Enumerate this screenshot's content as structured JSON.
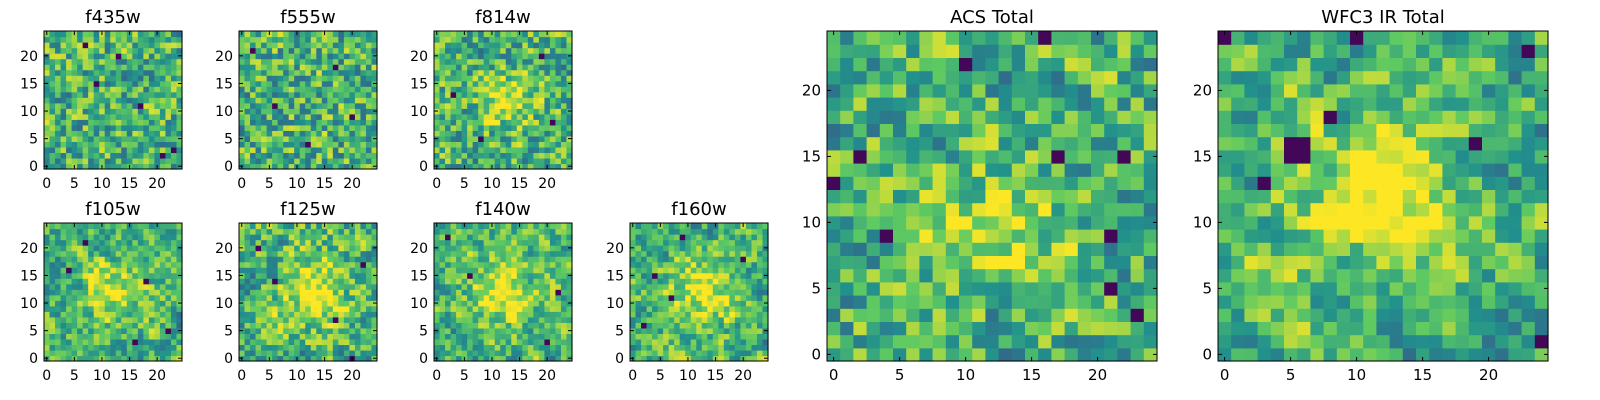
{
  "figure": {
    "background": "#ffffff",
    "colormap": "viridis",
    "colormap_stops": [
      "#440154",
      "#3b528b",
      "#21918c",
      "#5ec962",
      "#fde725"
    ],
    "notes_visible": ""
  },
  "chart_data": [
    {
      "id": "f435w",
      "type": "heatmap",
      "title": "f435w",
      "xlabel": "",
      "ylabel": "",
      "grid_size": 25,
      "xlim": [
        -0.5,
        24.5
      ],
      "ylim": [
        -0.5,
        24.5
      ],
      "xticks": [
        0,
        5,
        10,
        15,
        20
      ],
      "yticks": [
        0,
        5,
        10,
        15,
        20
      ],
      "colormap": "viridis",
      "grid": false,
      "smoothness": 0.15,
      "seed": 11,
      "blob": null,
      "dark_spots": [
        [
          7,
          22
        ],
        [
          17,
          11
        ],
        [
          23,
          3
        ],
        [
          9,
          15
        ],
        [
          21,
          2
        ],
        [
          13,
          20
        ]
      ],
      "value_range": [
        0,
        1
      ]
    },
    {
      "id": "f555w",
      "type": "heatmap",
      "title": "f555w",
      "xlabel": "",
      "ylabel": "",
      "grid_size": 25,
      "xlim": [
        -0.5,
        24.5
      ],
      "ylim": [
        -0.5,
        24.5
      ],
      "xticks": [
        0,
        5,
        10,
        15,
        20
      ],
      "yticks": [
        0,
        5,
        10,
        15,
        20
      ],
      "colormap": "viridis",
      "grid": false,
      "smoothness": 0.15,
      "seed": 23,
      "blob": null,
      "dark_spots": [
        [
          2,
          21
        ],
        [
          12,
          4
        ],
        [
          20,
          9
        ],
        [
          6,
          11
        ],
        [
          17,
          18
        ]
      ],
      "value_range": [
        0,
        1
      ]
    },
    {
      "id": "f814w",
      "type": "heatmap",
      "title": "f814w",
      "xlabel": "",
      "ylabel": "",
      "grid_size": 25,
      "xlim": [
        -0.5,
        24.5
      ],
      "ylim": [
        -0.5,
        24.5
      ],
      "xticks": [
        0,
        5,
        10,
        15,
        20
      ],
      "yticks": [
        0,
        5,
        10,
        15,
        20
      ],
      "colormap": "viridis",
      "grid": false,
      "smoothness": 0.25,
      "seed": 37,
      "blob": [
        13,
        12,
        3,
        0.35
      ],
      "dark_spots": [
        [
          3,
          13
        ],
        [
          19,
          20
        ],
        [
          8,
          5
        ],
        [
          21,
          8
        ]
      ],
      "value_range": [
        0,
        1
      ]
    },
    {
      "id": "f105w",
      "type": "heatmap",
      "title": "f105w",
      "xlabel": "",
      "ylabel": "",
      "grid_size": 25,
      "xlim": [
        -0.5,
        24.5
      ],
      "ylim": [
        -0.5,
        24.5
      ],
      "xticks": [
        0,
        5,
        10,
        15,
        20
      ],
      "yticks": [
        0,
        5,
        10,
        15,
        20
      ],
      "colormap": "viridis",
      "grid": false,
      "smoothness": 0.45,
      "seed": 51,
      "blob": [
        12,
        12,
        4,
        0.3
      ],
      "dark_spots": [
        [
          7,
          21
        ],
        [
          4,
          16
        ],
        [
          18,
          14
        ],
        [
          22,
          5
        ],
        [
          16,
          3
        ]
      ],
      "value_range": [
        0,
        1
      ]
    },
    {
      "id": "f125w",
      "type": "heatmap",
      "title": "f125w",
      "xlabel": "",
      "ylabel": "",
      "grid_size": 25,
      "xlim": [
        -0.5,
        24.5
      ],
      "ylim": [
        -0.5,
        24.5
      ],
      "xticks": [
        0,
        5,
        10,
        15,
        20
      ],
      "yticks": [
        0,
        5,
        10,
        15,
        20
      ],
      "colormap": "viridis",
      "grid": false,
      "smoothness": 0.45,
      "seed": 67,
      "blob": [
        13,
        12,
        4,
        0.35
      ],
      "dark_spots": [
        [
          20,
          0
        ],
        [
          3,
          20
        ],
        [
          22,
          17
        ],
        [
          6,
          14
        ],
        [
          17,
          7
        ]
      ],
      "value_range": [
        0,
        1
      ]
    },
    {
      "id": "f140w",
      "type": "heatmap",
      "title": "f140w",
      "xlabel": "",
      "ylabel": "",
      "grid_size": 25,
      "xlim": [
        -0.5,
        24.5
      ],
      "ylim": [
        -0.5,
        24.5
      ],
      "xticks": [
        0,
        5,
        10,
        15,
        20
      ],
      "yticks": [
        0,
        5,
        10,
        15,
        20
      ],
      "colormap": "viridis",
      "grid": false,
      "smoothness": 0.45,
      "seed": 79,
      "blob": [
        12,
        12,
        4,
        0.35
      ],
      "dark_spots": [
        [
          2,
          22
        ],
        [
          20,
          3
        ],
        [
          6,
          15
        ],
        [
          22,
          12
        ]
      ],
      "value_range": [
        0,
        1
      ]
    },
    {
      "id": "f160w",
      "type": "heatmap",
      "title": "f160w",
      "xlabel": "",
      "ylabel": "",
      "grid_size": 25,
      "xlim": [
        -0.5,
        24.5
      ],
      "ylim": [
        -0.5,
        24.5
      ],
      "xticks": [
        0,
        5,
        10,
        15,
        20
      ],
      "yticks": [
        0,
        5,
        10,
        15,
        20
      ],
      "colormap": "viridis",
      "grid": false,
      "smoothness": 0.45,
      "seed": 93,
      "blob": [
        13,
        12,
        4,
        0.35
      ],
      "dark_spots": [
        [
          4,
          15
        ],
        [
          7,
          11
        ],
        [
          2,
          6
        ],
        [
          20,
          18
        ],
        [
          9,
          22
        ]
      ],
      "value_range": [
        0,
        1
      ]
    },
    {
      "id": "acs_total",
      "type": "heatmap",
      "title": "ACS Total",
      "xlabel": "",
      "ylabel": "",
      "grid_size": 25,
      "xlim": [
        -0.5,
        24.5
      ],
      "ylim": [
        -0.5,
        24.5
      ],
      "xticks": [
        0,
        5,
        10,
        15,
        20
      ],
      "yticks": [
        0,
        5,
        10,
        15,
        20
      ],
      "colormap": "viridis",
      "grid": false,
      "smoothness": 0.3,
      "seed": 101,
      "blob": [
        13,
        10,
        3,
        0.3
      ],
      "dark_spots": [
        [
          0,
          13
        ],
        [
          2,
          15
        ],
        [
          4,
          9
        ],
        [
          10,
          22
        ],
        [
          16,
          24
        ],
        [
          21,
          9
        ],
        [
          21,
          5
        ],
        [
          23,
          3
        ],
        [
          22,
          15
        ],
        [
          17,
          15
        ]
      ],
      "value_range": [
        0,
        1
      ]
    },
    {
      "id": "wfc3_ir_total",
      "type": "heatmap",
      "title": "WFC3 IR Total",
      "xlabel": "",
      "ylabel": "",
      "grid_size": 25,
      "xlim": [
        -0.5,
        24.5
      ],
      "ylim": [
        -0.5,
        24.5
      ],
      "xticks": [
        0,
        5,
        10,
        15,
        20
      ],
      "yticks": [
        0,
        5,
        10,
        15,
        20
      ],
      "colormap": "viridis",
      "grid": false,
      "smoothness": 0.6,
      "seed": 127,
      "blob": [
        12,
        12,
        4,
        0.4
      ],
      "dark_spots": [
        [
          5,
          15
        ],
        [
          6,
          15
        ],
        [
          5,
          16
        ],
        [
          6,
          16
        ],
        [
          3,
          13
        ],
        [
          8,
          18
        ],
        [
          19,
          16
        ],
        [
          10,
          24
        ],
        [
          23,
          23
        ],
        [
          24,
          1
        ],
        [
          0,
          24
        ]
      ],
      "value_range": [
        0,
        1
      ]
    }
  ]
}
